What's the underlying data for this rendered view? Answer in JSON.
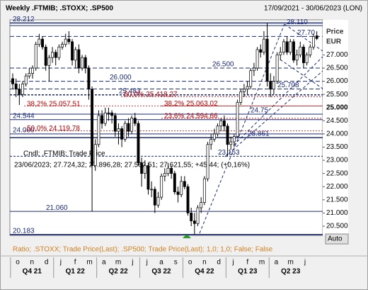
{
  "chart_data": {
    "type": "candlestick",
    "title": "Weekly .FTMIB; .STOXX; .SP500",
    "date_range": "17/09/2021 - 30/06/2023 (LON)",
    "y_axis_label": "Price",
    "y_axis_unit": "EUR",
    "current_value": {
      "value": 25000,
      "label": "25.000"
    },
    "info_title": "Cndl; .FTMIB; Trade Price",
    "info_line": "23/06/2023; 27.724,32; 27.896,28; 27.562,51; 27.621,55; +45,44; (+0,16%)",
    "footer": "Ratio; .STOXX; Trade Price(Last); .SP500; Trade Price(Last); 1,0; 1,0; False; False",
    "button": "Auto",
    "months": [
      "o",
      "n",
      "d",
      "j",
      "f",
      "m",
      "a",
      "m",
      "j",
      "j",
      "a",
      "s",
      "o",
      "n",
      "d",
      "j",
      "f",
      "m",
      "a",
      "m",
      "j"
    ],
    "quarters": [
      "Q4 21",
      "Q1 22",
      "Q2 22",
      "Q3 22",
      "Q4 22",
      "Q1 23",
      "Q2 23"
    ],
    "ylim": [
      20150,
      28330
    ],
    "yticks": [
      {
        "value": 20500,
        "label": "20.500"
      },
      {
        "value": 21000,
        "label": "21.000"
      },
      {
        "value": 21500,
        "label": "21.500"
      },
      {
        "value": 22000,
        "label": "22.000"
      },
      {
        "value": 22500,
        "label": "22.500"
      },
      {
        "value": 23000,
        "label": "23.000"
      },
      {
        "value": 23500,
        "label": "23.500"
      },
      {
        "value": 24000,
        "label": "24.000"
      },
      {
        "value": 24500,
        "label": "24.500"
      },
      {
        "value": 25500,
        "label": "25.500"
      },
      {
        "value": 26000,
        "label": "26.000"
      },
      {
        "value": 26500,
        "label": "26.500"
      },
      {
        "value": 27000,
        "label": "27.000"
      }
    ],
    "up_color": "#ffffff",
    "down_color": "#000000",
    "line_color": "#1a2a7a",
    "fib_color": "#c00000",
    "levels": [
      {
        "value": 28212,
        "label": "28.212"
      },
      {
        "value": 28110,
        "label": "28.110"
      },
      {
        "value": 27700,
        "label": "27.70"
      },
      {
        "value": 26500,
        "label": "26.500"
      },
      {
        "value": 26000,
        "label": "26.000"
      },
      {
        "value": 25708,
        "label": "25.708"
      },
      {
        "value": 25483,
        "label": "25.483"
      },
      {
        "value": 24750,
        "label": "24.75"
      },
      {
        "value": 24544,
        "label": "24.544"
      },
      {
        "value": 24000,
        "label": "24.000"
      },
      {
        "value": 23861,
        "label": "23.861"
      },
      {
        "value": 23153,
        "label": "23.153"
      },
      {
        "value": 21060,
        "label": "21.060"
      },
      {
        "value": 20183,
        "label": "20.183"
      }
    ],
    "fib_labels": [
      {
        "value": 25418.27,
        "label": "50,0% 25.418,27"
      },
      {
        "value": 25057.51,
        "label": "38,2% 25.057,51"
      },
      {
        "value": 25063.02,
        "label": "38,2% 25.063,02"
      },
      {
        "value": 24594.66,
        "label": "23,6% 24.594,66"
      },
      {
        "value": 24119.78,
        "label": "50,0% 24.119,78"
      }
    ],
    "candles": [
      [
        26100,
        26300,
        25700,
        25900
      ],
      [
        25900,
        26100,
        25400,
        25700
      ],
      [
        25700,
        25900,
        25100,
        25500
      ],
      [
        25500,
        26000,
        25400,
        25900
      ],
      [
        25900,
        26300,
        25800,
        26200
      ],
      [
        26200,
        26500,
        26100,
        26300
      ],
      [
        26300,
        26600,
        26100,
        26500
      ],
      [
        26500,
        27500,
        26400,
        27400
      ],
      [
        27400,
        27800,
        27300,
        27600
      ],
      [
        27600,
        27700,
        27200,
        27300
      ],
      [
        27300,
        27400,
        26400,
        26600
      ],
      [
        26600,
        27000,
        26000,
        26900
      ],
      [
        26900,
        27300,
        26700,
        27100
      ],
      [
        27100,
        27200,
        26600,
        26900
      ],
      [
        26900,
        27400,
        26800,
        27300
      ],
      [
        27300,
        27500,
        27200,
        27400
      ],
      [
        27400,
        27800,
        27300,
        27600
      ],
      [
        27600,
        27900,
        27400,
        27500
      ],
      [
        27500,
        27600,
        26600,
        26800
      ],
      [
        26800,
        27300,
        26500,
        27200
      ],
      [
        27200,
        27400,
        26300,
        26500
      ],
      [
        26500,
        27000,
        26400,
        26900
      ],
      [
        26900,
        27000,
        26300,
        26500
      ],
      [
        26500,
        26600,
        25300,
        25700
      ],
      [
        25700,
        25800,
        21060,
        22800
      ],
      [
        22800,
        23800,
        22600,
        23600
      ],
      [
        23600,
        24900,
        23500,
        24700
      ],
      [
        24700,
        24900,
        24200,
        24400
      ],
      [
        24400,
        25000,
        24300,
        24800
      ],
      [
        24800,
        25000,
        24500,
        24800
      ],
      [
        24800,
        24900,
        24400,
        24700
      ],
      [
        24700,
        24800,
        23900,
        24100
      ],
      [
        24100,
        24400,
        23600,
        24200
      ],
      [
        24200,
        24300,
        23500,
        23800
      ],
      [
        23800,
        24500,
        23700,
        24400
      ],
      [
        24400,
        24600,
        23900,
        24100
      ],
      [
        24100,
        24700,
        24000,
        24600
      ],
      [
        24600,
        24800,
        24300,
        24400
      ],
      [
        24400,
        24500,
        22800,
        22900
      ],
      [
        22900,
        23100,
        22000,
        22500
      ],
      [
        22500,
        23000,
        22300,
        22800
      ],
      [
        22800,
        22900,
        21700,
        21900
      ],
      [
        21900,
        22200,
        21600,
        21900
      ],
      [
        21900,
        22000,
        21000,
        21300
      ],
      [
        21300,
        21800,
        21200,
        21600
      ],
      [
        21600,
        22500,
        21500,
        22400
      ],
      [
        22400,
        22700,
        22200,
        22500
      ],
      [
        22500,
        22900,
        22400,
        22700
      ],
      [
        22700,
        22800,
        22300,
        22500
      ],
      [
        22500,
        22600,
        21700,
        21800
      ],
      [
        21800,
        22000,
        21400,
        21700
      ],
      [
        21700,
        22400,
        21600,
        22200
      ],
      [
        22200,
        22400,
        21900,
        22000
      ],
      [
        22000,
        22100,
        20900,
        21000
      ],
      [
        21000,
        21200,
        20500,
        20700
      ],
      [
        20700,
        21000,
        20183,
        20600
      ],
      [
        20600,
        21300,
        20500,
        21200
      ],
      [
        21200,
        21600,
        21000,
        21400
      ],
      [
        21400,
        22400,
        21300,
        22300
      ],
      [
        22300,
        23700,
        22200,
        23600
      ],
      [
        23600,
        24000,
        23400,
        23800
      ],
      [
        23800,
        24200,
        23700,
        24000
      ],
      [
        24000,
        24400,
        23900,
        24300
      ],
      [
        24300,
        24600,
        24100,
        24500
      ],
      [
        24500,
        24700,
        24100,
        24300
      ],
      [
        24300,
        24400,
        23153,
        23600
      ],
      [
        23600,
        23900,
        23400,
        23700
      ],
      [
        23700,
        24000,
        23500,
        23900
      ],
      [
        23900,
        25300,
        23861,
        25200
      ],
      [
        25200,
        25700,
        25100,
        25600
      ],
      [
        25600,
        25900,
        25400,
        25700
      ],
      [
        25700,
        26000,
        25500,
        25800
      ],
      [
        25800,
        26500,
        25700,
        26400
      ],
      [
        26400,
        26700,
        26200,
        26500
      ],
      [
        26500,
        27300,
        26400,
        27200
      ],
      [
        27200,
        27400,
        26900,
        27100
      ],
      [
        27100,
        27900,
        27000,
        27600
      ],
      [
        27600,
        28212,
        25800,
        26000
      ],
      [
        26000,
        26300,
        25400,
        25700
      ],
      [
        25700,
        26200,
        25500,
        26000
      ],
      [
        26000,
        27100,
        25900,
        27000
      ],
      [
        27000,
        27300,
        26800,
        27100
      ],
      [
        27100,
        27600,
        27000,
        27500
      ],
      [
        27500,
        27700,
        27000,
        27100
      ],
      [
        27100,
        27600,
        27000,
        27500
      ],
      [
        27500,
        27600,
        26700,
        26800
      ],
      [
        26800,
        27200,
        26600,
        27000
      ],
      [
        27000,
        27500,
        26900,
        27300
      ],
      [
        27300,
        27400,
        26500,
        26700
      ],
      [
        26700,
        27100,
        26600,
        27000
      ],
      [
        27000,
        27400,
        26900,
        27300
      ],
      [
        27300,
        27800,
        27200,
        27700
      ],
      [
        27724.32,
        27896.28,
        27562.51,
        27621.55
      ]
    ]
  }
}
